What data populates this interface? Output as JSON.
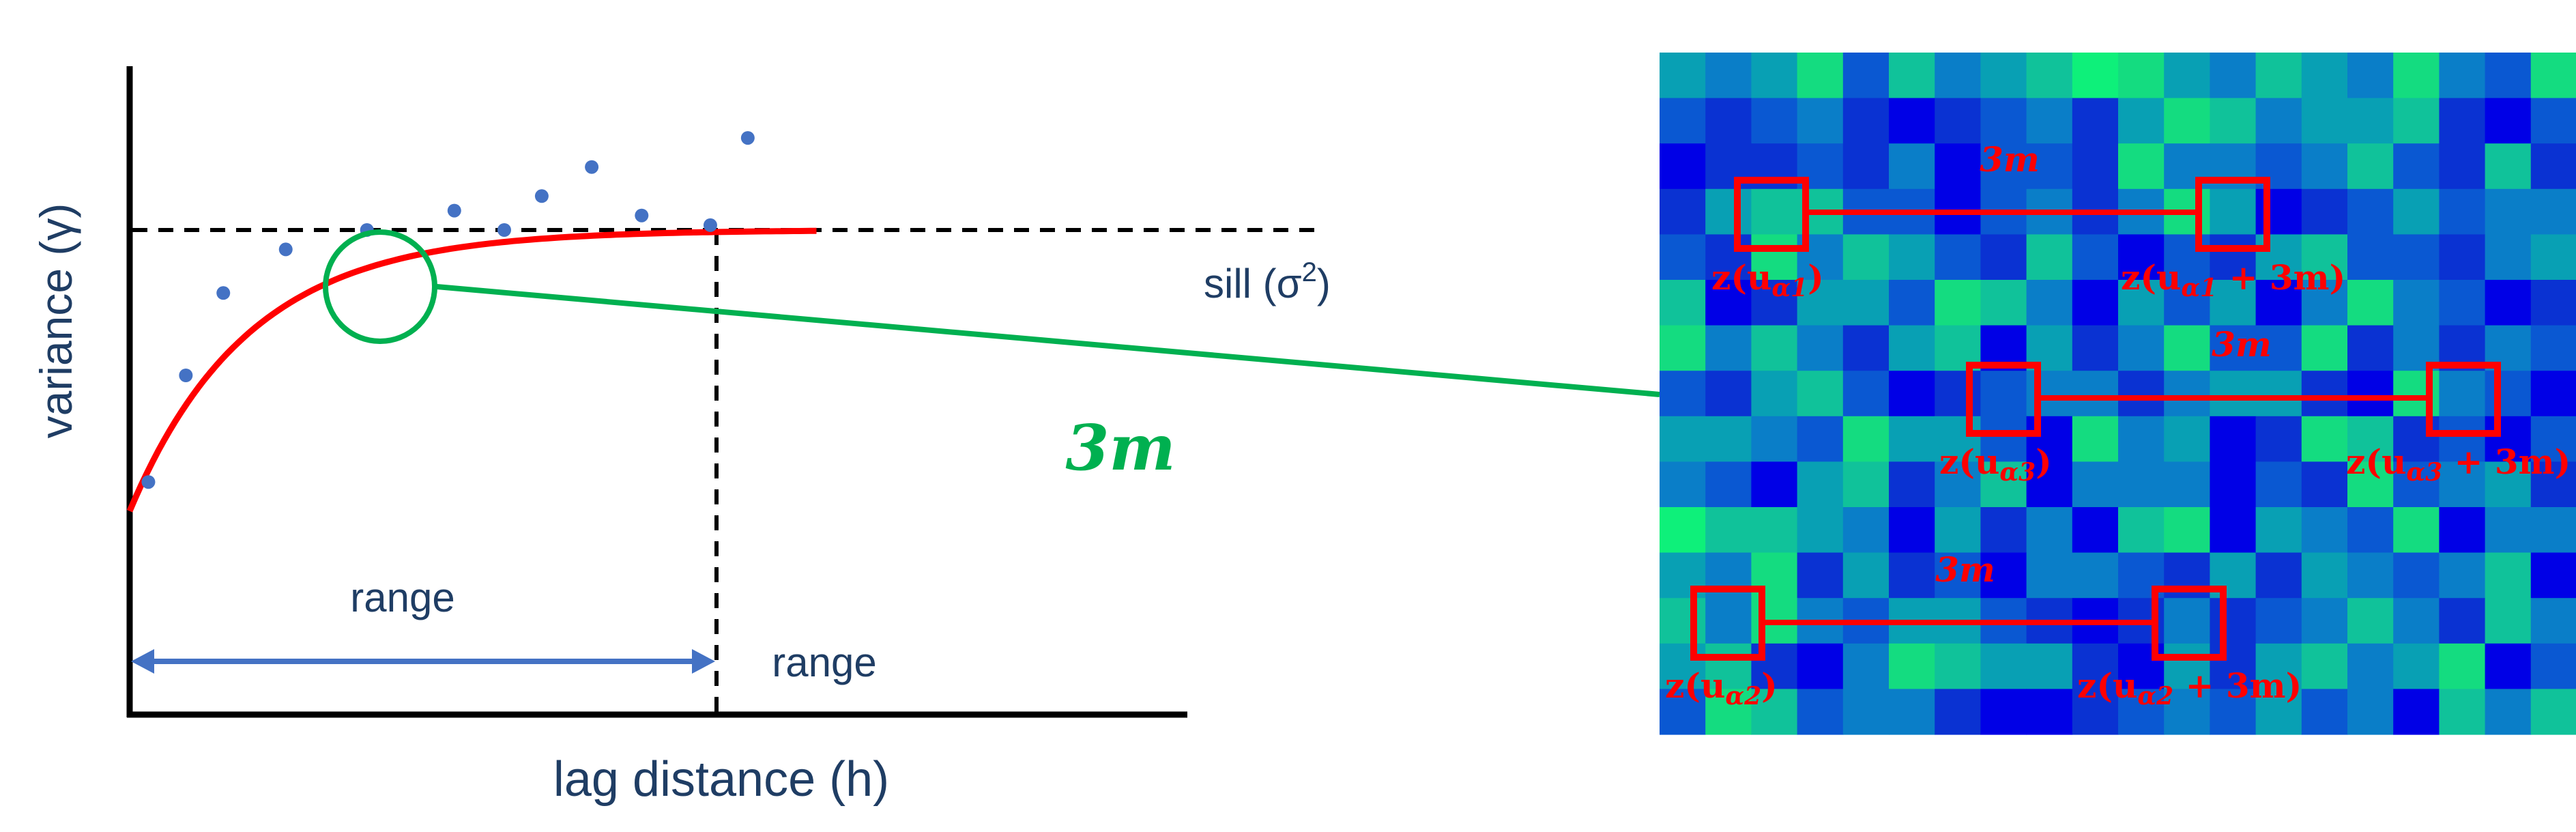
{
  "variogram": {
    "y_axis_label": "variance (γ)",
    "x_axis_label": "lag distance (h)",
    "sill_label_main": "sill (σ",
    "sill_label_sup": "2",
    "sill_label_close": ")",
    "range_label_arrow": "range",
    "range_label_axis": "range",
    "lag_label": "3m",
    "colors": {
      "axis": "#000000",
      "text": "#1f3d64",
      "model_curve": "#ff0000",
      "points": "#4472c4",
      "range_arrow": "#4472c4",
      "highlight": "#00b050"
    },
    "experimental_points": [
      {
        "h": 0.3,
        "gamma": 0.48
      },
      {
        "h": 0.9,
        "gamma": 0.7
      },
      {
        "h": 1.5,
        "gamma": 0.87
      },
      {
        "h": 2.5,
        "gamma": 0.96
      },
      {
        "h": 3.8,
        "gamma": 1.0
      },
      {
        "h": 5.2,
        "gamma": 1.04
      },
      {
        "h": 6.0,
        "gamma": 1.0
      },
      {
        "h": 6.6,
        "gamma": 1.07
      },
      {
        "h": 7.4,
        "gamma": 1.13
      },
      {
        "h": 8.2,
        "gamma": 1.03
      },
      {
        "h": 9.3,
        "gamma": 1.01
      },
      {
        "h": 9.9,
        "gamma": 1.19
      }
    ],
    "model": {
      "type": "exponential",
      "nugget": 0.42,
      "sill": 1.0,
      "range": 5.7
    },
    "highlighted_lag_h": 2.5
  },
  "grid": {
    "cols": 20,
    "rows": 15,
    "palette": [
      "#0000e6",
      "#0a32d2",
      "#0a58d2",
      "#0a7ec8",
      "#08a0b4",
      "#10c29a",
      "#14dc80",
      "#0ef07a"
    ],
    "cells": [
      "43462534576435436326",
      "21231012314653445102",
      "01121302216332352151",
      "14552202313640124233",
      "21635421520214522134",
      "50144265304240363201",
      "63531450413622613132",
      "21452012331344106320",
      "44326442063401651202",
      "32045135033302162341",
      "75543041305604326033",
      "43614120332141432350",
      "53632442101312353153",
      "45103654410414534602",
      "26523310012324230535"
    ],
    "pairs": [
      {
        "label_a": "z(u",
        "sub_a": "α1",
        "end_a": ")",
        "label_b": "z(u",
        "sub_b": "α1",
        "end_b": " + 3m)",
        "dist_label": "3m"
      },
      {
        "label_a": "z(u",
        "sub_a": "α3",
        "end_a": ")",
        "label_b": "z(u",
        "sub_b": "α3",
        "end_b": " + 3m)",
        "dist_label": "3m"
      },
      {
        "label_a": "z(u",
        "sub_a": "α2",
        "end_a": ")",
        "label_b": "z(u",
        "sub_b": "α2",
        "end_b": " + 3m)",
        "dist_label": "3m"
      }
    ],
    "marker_color": "#ff0000"
  }
}
